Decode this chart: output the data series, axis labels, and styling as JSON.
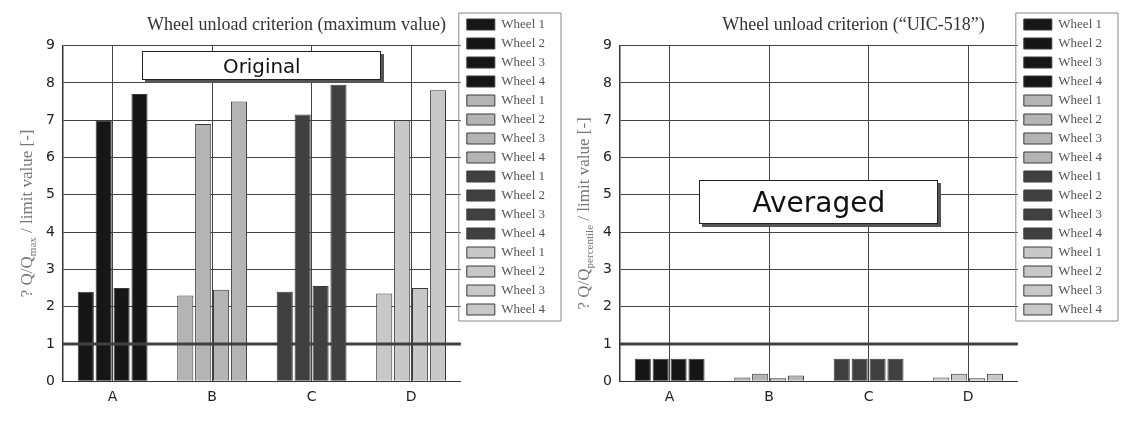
{
  "chart_data": [
    {
      "type": "bar",
      "title": "Wheel unload criterion (maximum value)",
      "ylabel": "? Q/Q$_{max}$ / limit value [-]",
      "categories": [
        "A",
        "B",
        "C",
        "D"
      ],
      "ylim": [
        0,
        9
      ],
      "yticks": [
        0,
        1,
        2,
        3,
        4,
        5,
        6,
        7,
        8,
        9
      ],
      "grid": true,
      "legend": "right",
      "annotations": [
        "Original"
      ],
      "ref_lines": [
        {
          "axis": "y",
          "value": 1,
          "color": "#404040"
        }
      ],
      "series": [
        {
          "name": "Wheel 1",
          "color": "#161616",
          "values": [
            2.4,
            null,
            null,
            null
          ]
        },
        {
          "name": "Wheel 2",
          "color": "#161616",
          "values": [
            7.0,
            null,
            null,
            null
          ]
        },
        {
          "name": "Wheel 3",
          "color": "#161616",
          "values": [
            2.5,
            null,
            null,
            null
          ]
        },
        {
          "name": "Wheel 4",
          "color": "#161616",
          "values": [
            7.7,
            null,
            null,
            null
          ]
        },
        {
          "name": "Wheel 1",
          "color": "#b4b4b4",
          "values": [
            null,
            2.3,
            null,
            null
          ]
        },
        {
          "name": "Wheel 2",
          "color": "#b4b4b4",
          "values": [
            null,
            6.9,
            null,
            null
          ]
        },
        {
          "name": "Wheel 3",
          "color": "#b4b4b4",
          "values": [
            null,
            2.45,
            null,
            null
          ]
        },
        {
          "name": "Wheel 4",
          "color": "#b4b4b4",
          "values": [
            null,
            7.5,
            null,
            null
          ]
        },
        {
          "name": "Wheel 1",
          "color": "#404040",
          "values": [
            null,
            null,
            2.4,
            null
          ]
        },
        {
          "name": "Wheel 2",
          "color": "#404040",
          "values": [
            null,
            null,
            7.15,
            null
          ]
        },
        {
          "name": "Wheel 3",
          "color": "#404040",
          "values": [
            null,
            null,
            2.55,
            null
          ]
        },
        {
          "name": "Wheel 4",
          "color": "#404040",
          "values": [
            null,
            null,
            7.95,
            null
          ]
        },
        {
          "name": "Wheel 1",
          "color": "#c8c8c8",
          "values": [
            null,
            null,
            null,
            2.35
          ]
        },
        {
          "name": "Wheel 2",
          "color": "#c8c8c8",
          "values": [
            null,
            null,
            null,
            7.0
          ]
        },
        {
          "name": "Wheel 3",
          "color": "#c8c8c8",
          "values": [
            null,
            null,
            null,
            2.5
          ]
        },
        {
          "name": "Wheel 4",
          "color": "#c8c8c8",
          "values": [
            null,
            null,
            null,
            7.8
          ]
        }
      ]
    },
    {
      "type": "bar",
      "title": "Wheel unload criterion (“UIC-518”)",
      "ylabel": "? Q/Q$_{percentile}$ / limit value [-]",
      "categories": [
        "A",
        "B",
        "C",
        "D"
      ],
      "ylim": [
        0,
        9
      ],
      "yticks": [
        0,
        1,
        2,
        3,
        4,
        5,
        6,
        7,
        8,
        9
      ],
      "grid": true,
      "legend": "right",
      "annotations": [
        "Averaged"
      ],
      "ref_lines": [
        {
          "axis": "y",
          "value": 1,
          "color": "#404040"
        }
      ],
      "series": [
        {
          "name": "Wheel 1",
          "color": "#161616",
          "values": [
            0.6,
            null,
            null,
            null
          ]
        },
        {
          "name": "Wheel 2",
          "color": "#161616",
          "values": [
            0.6,
            null,
            null,
            null
          ]
        },
        {
          "name": "Wheel 3",
          "color": "#161616",
          "values": [
            0.6,
            null,
            null,
            null
          ]
        },
        {
          "name": "Wheel 4",
          "color": "#161616",
          "values": [
            0.6,
            null,
            null,
            null
          ]
        },
        {
          "name": "Wheel 1",
          "color": "#b4b4b4",
          "values": [
            null,
            0.1,
            null,
            null
          ]
        },
        {
          "name": "Wheel 2",
          "color": "#b4b4b4",
          "values": [
            null,
            0.2,
            null,
            null
          ]
        },
        {
          "name": "Wheel 3",
          "color": "#b4b4b4",
          "values": [
            null,
            0.08,
            null,
            null
          ]
        },
        {
          "name": "Wheel 4",
          "color": "#b4b4b4",
          "values": [
            null,
            0.15,
            null,
            null
          ]
        },
        {
          "name": "Wheel 1",
          "color": "#404040",
          "values": [
            null,
            null,
            0.6,
            null
          ]
        },
        {
          "name": "Wheel 2",
          "color": "#404040",
          "values": [
            null,
            null,
            0.6,
            null
          ]
        },
        {
          "name": "Wheel 3",
          "color": "#404040",
          "values": [
            null,
            null,
            0.6,
            null
          ]
        },
        {
          "name": "Wheel 4",
          "color": "#404040",
          "values": [
            null,
            null,
            0.6,
            null
          ]
        },
        {
          "name": "Wheel 1",
          "color": "#c8c8c8",
          "values": [
            null,
            null,
            null,
            0.1
          ]
        },
        {
          "name": "Wheel 2",
          "color": "#c8c8c8",
          "values": [
            null,
            null,
            null,
            0.2
          ]
        },
        {
          "name": "Wheel 3",
          "color": "#c8c8c8",
          "values": [
            null,
            null,
            null,
            0.08
          ]
        },
        {
          "name": "Wheel 4",
          "color": "#c8c8c8",
          "values": [
            null,
            null,
            null,
            0.2
          ]
        }
      ]
    }
  ]
}
